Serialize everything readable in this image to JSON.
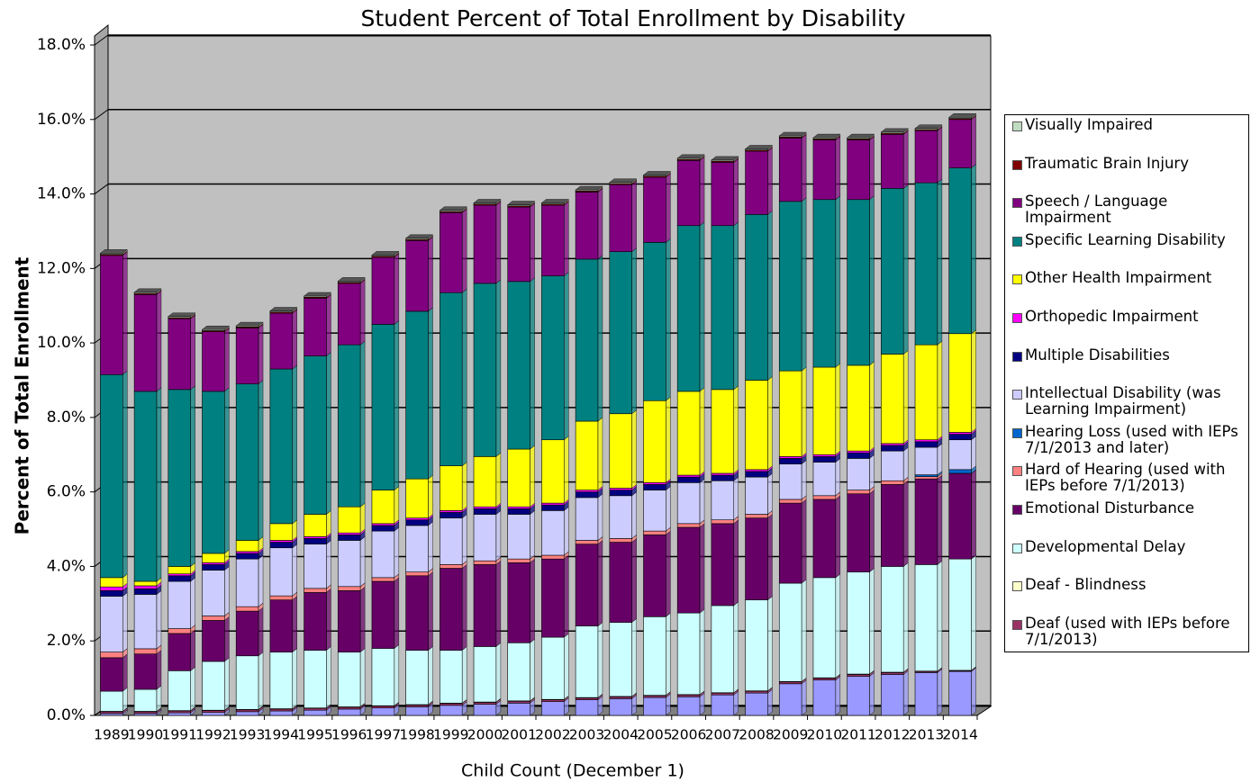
{
  "chart_data": {
    "type": "stacked-bar",
    "title": "Student Percent of Total Enrollment by Disability",
    "x_label": "Child Count (December 1)",
    "y_label": "Percent of Total Enrollment",
    "categories": [
      "1989",
      "1990",
      "1991",
      "1992",
      "1993",
      "1994",
      "1995",
      "1996",
      "1997",
      "1998",
      "1999",
      "2000",
      "2001",
      "2002",
      "2003",
      "2004",
      "2005",
      "2006",
      "2007",
      "2008",
      "2009",
      "2010",
      "2011",
      "2012",
      "2013",
      "2014"
    ],
    "ylim": [
      0,
      18
    ],
    "yticks": [
      {
        "value": 0,
        "label": "0.0%"
      },
      {
        "value": 2,
        "label": "2.0%"
      },
      {
        "value": 4,
        "label": "4.0%"
      },
      {
        "value": 6,
        "label": "6.0%"
      },
      {
        "value": 8,
        "label": "8.0%"
      },
      {
        "value": 10,
        "label": "10.0%"
      },
      {
        "value": 12,
        "label": "12.0%"
      },
      {
        "value": 14,
        "label": "14.0%"
      },
      {
        "value": 16,
        "label": "16.0%"
      },
      {
        "value": 18,
        "label": "18.0%"
      }
    ],
    "grid": true,
    "legend": "right",
    "series": [
      {
        "color": "#9999ff",
        "values": [
          0.05,
          0.05,
          0.07,
          0.08,
          0.1,
          0.12,
          0.14,
          0.17,
          0.2,
          0.23,
          0.27,
          0.3,
          0.33,
          0.37,
          0.42,
          0.45,
          0.48,
          0.5,
          0.55,
          0.6,
          0.85,
          0.95,
          1.05,
          1.1,
          1.15,
          1.18
        ]
      },
      {
        "name": "Deaf (used with IEPs before 7/1/2013)",
        "color": "#993366",
        "values": [
          0.05,
          0.05,
          0.05,
          0.05,
          0.05,
          0.05,
          0.05,
          0.05,
          0.05,
          0.05,
          0.05,
          0.05,
          0.05,
          0.05,
          0.05,
          0.05,
          0.05,
          0.05,
          0.05,
          0.05,
          0.05,
          0.05,
          0.05,
          0.05,
          0.03,
          0.02
        ]
      },
      {
        "name": "Deaf - Blindness",
        "color": "#ffffcc",
        "values": [
          0.01,
          0.01,
          0.01,
          0.01,
          0.01,
          0.01,
          0.01,
          0.01,
          0.01,
          0.01,
          0.01,
          0.01,
          0.01,
          0.01,
          0.01,
          0.01,
          0.01,
          0.01,
          0.01,
          0.01,
          0.01,
          0.01,
          0.01,
          0.01,
          0.01,
          0.01
        ]
      },
      {
        "name": "Developmental Delay",
        "color": "#ccffff",
        "values": [
          0.54,
          0.59,
          1.07,
          1.31,
          1.44,
          1.52,
          1.55,
          1.47,
          1.54,
          1.46,
          1.42,
          1.49,
          1.56,
          1.67,
          1.92,
          1.99,
          2.11,
          2.19,
          2.34,
          2.44,
          2.64,
          2.69,
          2.74,
          2.84,
          2.86,
          2.99
        ]
      },
      {
        "name": "Emotional Disturbance",
        "color": "#660066",
        "values": [
          0.9,
          0.95,
          1.0,
          1.1,
          1.2,
          1.4,
          1.55,
          1.65,
          1.8,
          2.0,
          2.2,
          2.2,
          2.15,
          2.1,
          2.2,
          2.15,
          2.2,
          2.3,
          2.2,
          2.2,
          2.15,
          2.1,
          2.1,
          2.2,
          2.3,
          2.3
        ]
      },
      {
        "name": "Hard of Hearing (used with IEPs before 7/1/2013)",
        "color": "#ff8080",
        "values": [
          0.15,
          0.14,
          0.13,
          0.12,
          0.12,
          0.11,
          0.11,
          0.11,
          0.1,
          0.1,
          0.1,
          0.1,
          0.1,
          0.1,
          0.1,
          0.1,
          0.1,
          0.1,
          0.1,
          0.1,
          0.1,
          0.1,
          0.1,
          0.1,
          0.06,
          0
        ]
      },
      {
        "name": "Hearing Loss (used with IEPs 7/1/2013 and later)",
        "color": "#0066cc",
        "values": [
          0,
          0,
          0,
          0,
          0,
          0,
          0,
          0,
          0,
          0,
          0,
          0,
          0,
          0,
          0,
          0,
          0,
          0,
          0,
          0,
          0,
          0,
          0,
          0,
          0.05,
          0.1
        ]
      },
      {
        "name": "Intellectual Disability (was Learning Impairment)",
        "color": "#ccccff",
        "values": [
          1.5,
          1.46,
          1.27,
          1.23,
          1.28,
          1.29,
          1.19,
          1.24,
          1.25,
          1.25,
          1.25,
          1.25,
          1.2,
          1.2,
          1.15,
          1.15,
          1.1,
          1.1,
          1.05,
          1.0,
          0.95,
          0.9,
          0.85,
          0.8,
          0.74,
          0.8
        ]
      },
      {
        "name": "Multiple Disabilities",
        "color": "#000080",
        "values": [
          0.15,
          0.15,
          0.15,
          0.15,
          0.15,
          0.15,
          0.15,
          0.15,
          0.15,
          0.15,
          0.15,
          0.15,
          0.15,
          0.15,
          0.15,
          0.15,
          0.15,
          0.15,
          0.15,
          0.15,
          0.15,
          0.15,
          0.15,
          0.15,
          0.15,
          0.15
        ]
      },
      {
        "name": "Orthopedic Impairment",
        "color": "#ff00ff",
        "values": [
          0.1,
          0.08,
          0.05,
          0.05,
          0.05,
          0.05,
          0.05,
          0.05,
          0.05,
          0.05,
          0.05,
          0.05,
          0.05,
          0.05,
          0.05,
          0.05,
          0.05,
          0.05,
          0.05,
          0.05,
          0.05,
          0.05,
          0.05,
          0.05,
          0.05,
          0.05
        ]
      },
      {
        "name": "Other Health Impairment",
        "color": "#ffff00",
        "values": [
          0.25,
          0.12,
          0.2,
          0.25,
          0.3,
          0.45,
          0.6,
          0.7,
          0.9,
          1.05,
          1.2,
          1.35,
          1.55,
          1.7,
          1.85,
          2.0,
          2.2,
          2.25,
          2.25,
          2.4,
          2.3,
          2.35,
          2.3,
          2.4,
          2.55,
          2.65
        ]
      },
      {
        "name": "Specific Learning Disability",
        "color": "#008080",
        "values": [
          5.45,
          5.1,
          4.75,
          4.35,
          4.2,
          4.15,
          4.25,
          4.35,
          4.45,
          4.5,
          4.65,
          4.65,
          4.5,
          4.4,
          4.35,
          4.35,
          4.25,
          4.45,
          4.4,
          4.45,
          4.55,
          4.5,
          4.45,
          4.45,
          4.35,
          4.45
        ]
      },
      {
        "name": "Speech / Language Impairment",
        "color": "#800080",
        "values": [
          3.2,
          2.6,
          1.9,
          1.6,
          1.5,
          1.5,
          1.55,
          1.65,
          1.8,
          1.9,
          2.15,
          2.1,
          2.0,
          1.9,
          1.8,
          1.8,
          1.75,
          1.75,
          1.7,
          1.7,
          1.7,
          1.6,
          1.6,
          1.45,
          1.4,
          1.3
        ]
      },
      {
        "name": "Traumatic Brain Injury",
        "color": "#800000",
        "values": [
          0.03,
          0.03,
          0.03,
          0.03,
          0.03,
          0.03,
          0.03,
          0.03,
          0.03,
          0.03,
          0.03,
          0.03,
          0.03,
          0.03,
          0.03,
          0.03,
          0.03,
          0.03,
          0.03,
          0.03,
          0.03,
          0.03,
          0.03,
          0.03,
          0.03,
          0.03
        ]
      },
      {
        "name": "Visually Impaired",
        "color": "#c0dcc0",
        "values": [
          0.03,
          0.03,
          0.03,
          0.03,
          0.03,
          0.03,
          0.03,
          0.03,
          0.03,
          0.03,
          0.03,
          0.03,
          0.03,
          0.03,
          0.03,
          0.03,
          0.03,
          0.03,
          0.03,
          0.03,
          0.03,
          0.03,
          0.03,
          0.03,
          0.03,
          0.03
        ]
      }
    ]
  }
}
